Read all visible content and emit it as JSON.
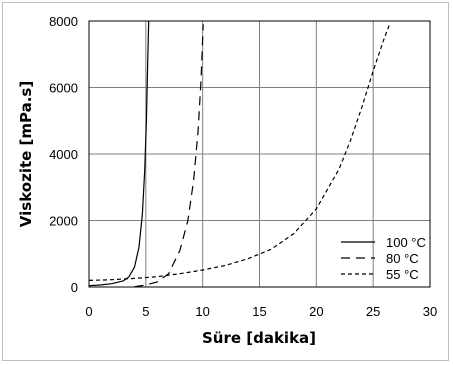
{
  "chart_data": {
    "type": "line",
    "title": "",
    "xlabel": "Süre [dakika]",
    "ylabel": "Viskozite [mPa.s]",
    "xlim": [
      0,
      30
    ],
    "ylim": [
      0,
      8000
    ],
    "x_ticks": [
      "0",
      "5",
      "10",
      "15",
      "20",
      "25",
      "30"
    ],
    "y_ticks": [
      "0",
      "2000",
      "4000",
      "6000",
      "8000"
    ],
    "grid": true,
    "legend_position": "lower-right",
    "series": [
      {
        "name": "100 °C",
        "line_style": "solid",
        "color": "#000000",
        "points": [
          [
            0,
            40
          ],
          [
            1,
            60
          ],
          [
            2,
            100
          ],
          [
            3,
            180
          ],
          [
            3.5,
            300
          ],
          [
            4,
            600
          ],
          [
            4.4,
            1200
          ],
          [
            4.7,
            2200
          ],
          [
            4.9,
            3500
          ],
          [
            5.05,
            5000
          ],
          [
            5.15,
            6500
          ],
          [
            5.25,
            8000
          ]
        ]
      },
      {
        "name": "80 °C",
        "line_style": "long-dash",
        "color": "#000000",
        "points": [
          [
            4,
            10
          ],
          [
            5,
            60
          ],
          [
            6,
            150
          ],
          [
            7,
            400
          ],
          [
            8,
            1100
          ],
          [
            8.7,
            2000
          ],
          [
            9.2,
            3200
          ],
          [
            9.6,
            4700
          ],
          [
            9.85,
            6200
          ],
          [
            10.05,
            7900
          ]
        ]
      },
      {
        "name": "55 °C",
        "line_style": "short-dash",
        "color": "#000000",
        "points": [
          [
            0,
            200
          ],
          [
            2,
            220
          ],
          [
            4,
            260
          ],
          [
            6,
            310
          ],
          [
            8,
            400
          ],
          [
            10,
            510
          ],
          [
            12,
            650
          ],
          [
            14,
            850
          ],
          [
            16,
            1130
          ],
          [
            18,
            1600
          ],
          [
            20,
            2350
          ],
          [
            22,
            3550
          ],
          [
            23,
            4400
          ],
          [
            24,
            5400
          ],
          [
            25,
            6500
          ],
          [
            26,
            7500
          ],
          [
            26.5,
            7950
          ]
        ]
      }
    ]
  }
}
